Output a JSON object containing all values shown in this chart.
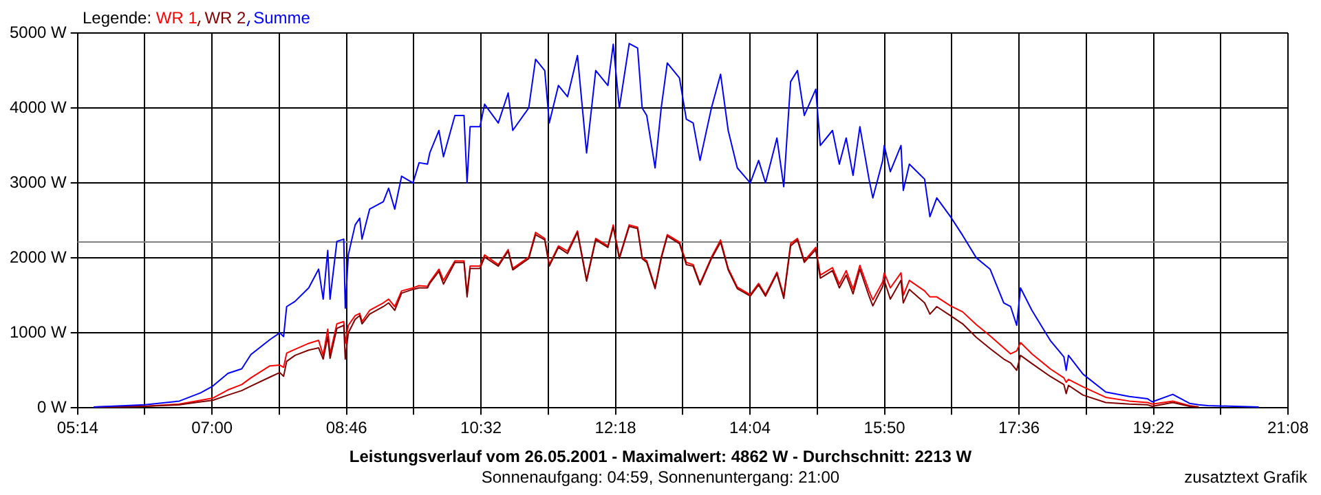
{
  "chart_data": {
    "type": "line",
    "title": "Leistungsverlauf vom 26.05.2001 - Maximalwert: 4862 W - Durchschnitt: 2213 W",
    "subtitle": "Sonnenaufgang: 04:59, Sonnenuntergang: 21:00",
    "legend_title": "Legende:",
    "annotations": [
      "zusatztext Grafik"
    ],
    "x": [
      5.446,
      6.12,
      6.57,
      6.85,
      7.01,
      7.21,
      7.39,
      7.51,
      7.76,
      7.89,
      7.94,
      7.98,
      8.09,
      8.27,
      8.4,
      8.46,
      8.52,
      8.55,
      8.64,
      8.73,
      8.75,
      8.79,
      8.88,
      8.94,
      8.97,
      9.07,
      9.25,
      9.32,
      9.4,
      9.49,
      9.64,
      9.72,
      9.83,
      9.86,
      9.98,
      10.04,
      10.19,
      10.31,
      10.35,
      10.39,
      10.52,
      10.58,
      10.76,
      10.89,
      10.95,
      11.16,
      11.25,
      11.37,
      11.43,
      11.55,
      11.67,
      11.8,
      11.92,
      12.04,
      12.2,
      12.27,
      12.35,
      12.48,
      12.59,
      12.65,
      12.71,
      12.82,
      12.9,
      12.98,
      13.14,
      13.23,
      13.32,
      13.41,
      13.56,
      13.68,
      13.78,
      13.9,
      14.07,
      14.18,
      14.27,
      14.42,
      14.51,
      14.6,
      14.69,
      14.78,
      14.93,
      14.99,
      15.15,
      15.24,
      15.33,
      15.42,
      15.51,
      15.63,
      15.68,
      15.81,
      15.83,
      15.91,
      16.05,
      16.08,
      16.16,
      16.36,
      16.43,
      16.52,
      16.7,
      16.86,
      17.04,
      17.22,
      17.4,
      17.49,
      17.57,
      17.62,
      17.77,
      18.01,
      18.19,
      18.22,
      18.25,
      18.44,
      18.74,
      19.05,
      19.29,
      19.35,
      19.62,
      19.84,
      19.96,
      20.08,
      20.75
    ],
    "series": [
      {
        "name": "WR 1",
        "color": "#ff0000",
        "values": [
          10,
          20,
          50,
          100,
          130,
          240,
          310,
          400,
          560,
          570,
          540,
          730,
          780,
          860,
          900,
          700,
          1050,
          720,
          1120,
          1150,
          860,
          1100,
          1230,
          1260,
          1150,
          1300,
          1400,
          1450,
          1350,
          1560,
          1600,
          1630,
          1620,
          1680,
          1850,
          1700,
          1960,
          1960,
          1520,
          1890,
          1890,
          2040,
          1910,
          2110,
          1860,
          2010,
          2340,
          2260,
          1910,
          2160,
          2090,
          2360,
          1710,
          2260,
          2160,
          2440,
          2010,
          2440,
          2410,
          2010,
          1960,
          1610,
          2010,
          2310,
          2210,
          1940,
          1910,
          1660,
          2010,
          2240,
          1860,
          1610,
          1510,
          1660,
          1510,
          1810,
          1490,
          2190,
          2260,
          1960,
          2140,
          1770,
          1870,
          1650,
          1830,
          1580,
          1900,
          1560,
          1440,
          1680,
          1800,
          1600,
          1800,
          1500,
          1700,
          1560,
          1480,
          1480,
          1360,
          1280,
          1110,
          960,
          800,
          720,
          760,
          870,
          720,
          520,
          400,
          340,
          380,
          280,
          140,
          90,
          70,
          50,
          90,
          30,
          10,
          null,
          null
        ]
      },
      {
        "name": "WR 2",
        "color": "#800000",
        "values": [
          10,
          20,
          40,
          80,
          100,
          170,
          230,
          290,
          410,
          470,
          420,
          620,
          700,
          770,
          800,
          650,
          950,
          660,
          1060,
          1100,
          650,
          1000,
          1180,
          1230,
          1120,
          1250,
          1350,
          1400,
          1300,
          1530,
          1580,
          1600,
          1600,
          1660,
          1820,
          1650,
          1940,
          1940,
          1480,
          1860,
          1860,
          2010,
          1890,
          2090,
          1840,
          1990,
          2310,
          2240,
          1890,
          2140,
          2060,
          2340,
          1690,
          2240,
          2140,
          2410,
          1990,
          2420,
          2390,
          1990,
          1940,
          1590,
          1990,
          2290,
          2190,
          1910,
          1890,
          1640,
          1990,
          2210,
          1840,
          1590,
          1490,
          1640,
          1490,
          1790,
          1460,
          2160,
          2240,
          1940,
          2110,
          1730,
          1830,
          1600,
          1770,
          1520,
          1850,
          1490,
          1360,
          1620,
          1700,
          1450,
          1700,
          1400,
          1580,
          1400,
          1250,
          1350,
          1230,
          1120,
          940,
          790,
          650,
          600,
          500,
          700,
          590,
          420,
          310,
          190,
          300,
          170,
          70,
          50,
          40,
          20,
          70,
          20,
          10,
          null,
          null
        ]
      },
      {
        "name": "Summe",
        "color": "#0000ff",
        "values": [
          10,
          40,
          90,
          200,
          290,
          460,
          520,
          710,
          910,
          1000,
          950,
          1350,
          1420,
          1600,
          1850,
          1450,
          2100,
          1450,
          2220,
          2250,
          1330,
          2040,
          2440,
          2530,
          2250,
          2650,
          2750,
          2930,
          2650,
          3090,
          3000,
          3270,
          3250,
          3400,
          3700,
          3350,
          3900,
          3900,
          3000,
          3750,
          3750,
          4050,
          3800,
          4200,
          3700,
          4000,
          4650,
          4500,
          3800,
          4300,
          4150,
          4700,
          3400,
          4500,
          4300,
          4850,
          4000,
          4860,
          4800,
          4000,
          3900,
          3200,
          4000,
          4600,
          4400,
          3850,
          3800,
          3300,
          4000,
          4450,
          3700,
          3200,
          3000,
          3300,
          3000,
          3600,
          2950,
          4350,
          4500,
          3900,
          4250,
          3500,
          3700,
          3250,
          3600,
          3100,
          3750,
          3050,
          2800,
          3300,
          3500,
          3150,
          3500,
          2900,
          3250,
          3050,
          2550,
          2800,
          2550,
          2300,
          2000,
          1850,
          1400,
          1350,
          1100,
          1600,
          1300,
          900,
          680,
          500,
          700,
          450,
          210,
          150,
          120,
          80,
          180,
          60,
          40,
          30,
          10
        ]
      }
    ],
    "xlim": [
      5.2333,
      21.1333
    ],
    "xticks": [
      {
        "value": 5.2333,
        "label": "05:14"
      },
      {
        "value": 6.1167,
        "label": null
      },
      {
        "value": 7.0,
        "label": "07:00"
      },
      {
        "value": 7.8833,
        "label": null
      },
      {
        "value": 8.7667,
        "label": "08:46"
      },
      {
        "value": 9.65,
        "label": null
      },
      {
        "value": 10.5333,
        "label": "10:32"
      },
      {
        "value": 11.4167,
        "label": null
      },
      {
        "value": 12.3,
        "label": "12:18"
      },
      {
        "value": 13.1833,
        "label": null
      },
      {
        "value": 14.0667,
        "label": "14:04"
      },
      {
        "value": 14.95,
        "label": null
      },
      {
        "value": 15.8333,
        "label": "15:50"
      },
      {
        "value": 16.7167,
        "label": null
      },
      {
        "value": 17.6,
        "label": "17:36"
      },
      {
        "value": 18.4833,
        "label": null
      },
      {
        "value": 19.3667,
        "label": "19:22"
      },
      {
        "value": 20.25,
        "label": null
      },
      {
        "value": 21.1333,
        "label": "21:08"
      }
    ],
    "ylim": [
      0,
      5000
    ],
    "yticks": [
      {
        "value": 0,
        "label": "0 W"
      },
      {
        "value": 1000,
        "label": "1000 W"
      },
      {
        "value": 2000,
        "label": "2000 W"
      },
      {
        "value": 3000,
        "label": "3000 W"
      },
      {
        "value": 4000,
        "label": "4000 W"
      },
      {
        "value": 5000,
        "label": "5000 W"
      }
    ],
    "ref_lines": [
      {
        "axis": "y",
        "value": 2213,
        "color": "#808080"
      }
    ],
    "grid": true,
    "legend": "top left",
    "marker": "none",
    "line_style": "solid"
  }
}
